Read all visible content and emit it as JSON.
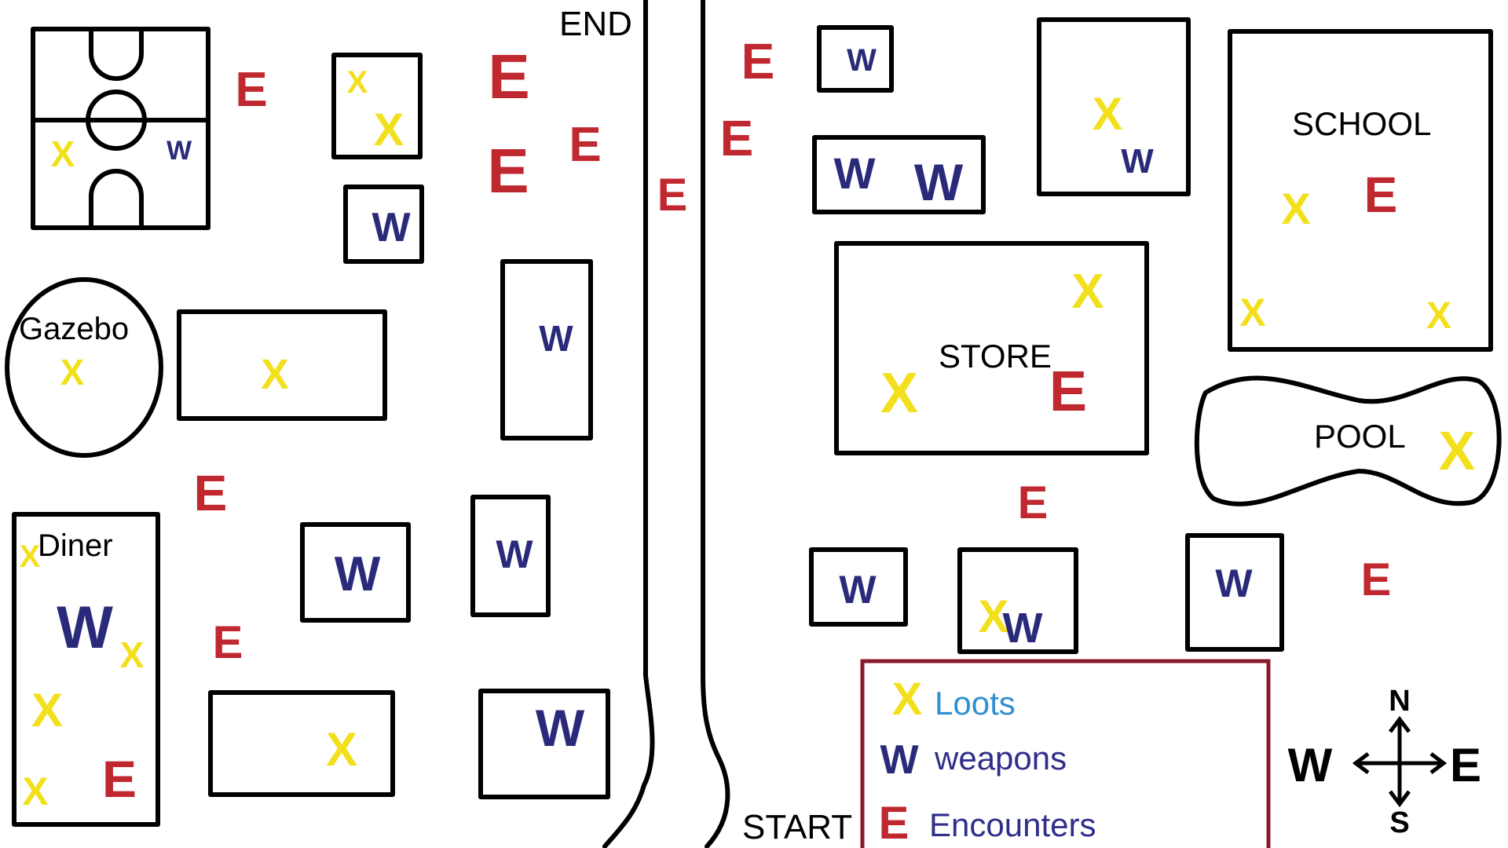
{
  "labels": {
    "end": "END",
    "start": "START",
    "gazebo": "Gazebo",
    "diner": "Diner",
    "store": "STORE",
    "school": "SCHOOL",
    "pool": "POOL"
  },
  "legend": {
    "loots": "Loots",
    "weapons": "weapons",
    "encounters": "Encounters"
  },
  "compass": {
    "n": "N",
    "s": "S",
    "w": "W",
    "e": "E"
  },
  "markers": {
    "loot": "X",
    "weapon": "W",
    "encounter": "E"
  },
  "colors": {
    "loot": "#f2e01c",
    "weapon": "#2a2a7a",
    "encounter": "#c0282f",
    "legend_border": "#8a1a2a",
    "loots_text": "#2f8fd0",
    "legend_text": "#2f2f8a",
    "outline": "#000000"
  }
}
